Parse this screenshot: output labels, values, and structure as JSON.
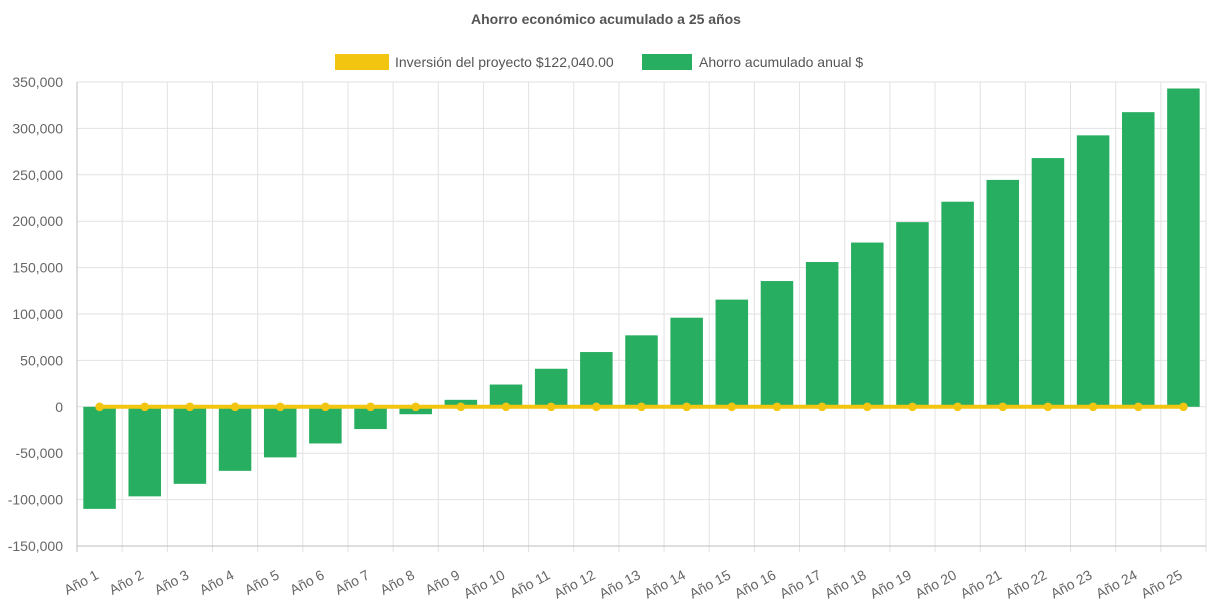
{
  "chart_data": {
    "type": "bar",
    "title": "Ahorro económico acumulado a 25 años",
    "xlabel": "",
    "ylabel": "",
    "ylim": [
      -150000,
      350000
    ],
    "yticks": [
      350000,
      300000,
      250000,
      200000,
      150000,
      100000,
      50000,
      0,
      -50000,
      -100000,
      -150000
    ],
    "ytick_labels": [
      "350,000",
      "300,000",
      "250,000",
      "200,000",
      "150,000",
      "100,000",
      "50,000",
      "0",
      "-50,000",
      "-100,000",
      "-150,000"
    ],
    "grid": true,
    "legend_position": "top",
    "categories": [
      "Año 1",
      "Año 2",
      "Año 3",
      "Año 4",
      "Año 5",
      "Año 6",
      "Año 7",
      "Año 8",
      "Año 9",
      "Año 10",
      "Año 11",
      "Año 12",
      "Año 13",
      "Año 14",
      "Año 15",
      "Año 16",
      "Año 17",
      "Año 18",
      "Año 19",
      "Año 20",
      "Año 21",
      "Año 22",
      "Año 23",
      "Año 24",
      "Año 25"
    ],
    "series": [
      {
        "name": "Inversión del proyecto $122,040.00",
        "type": "line",
        "color": "#f2c511",
        "values": [
          0,
          0,
          0,
          0,
          0,
          0,
          0,
          0,
          0,
          0,
          0,
          0,
          0,
          0,
          0,
          0,
          0,
          0,
          0,
          0,
          0,
          0,
          0,
          0,
          0
        ]
      },
      {
        "name": "Ahorro acumulado anual $",
        "type": "bar",
        "color": "#27ae60",
        "values": [
          -110000,
          -96500,
          -83000,
          -69000,
          -54500,
          -39500,
          -24000,
          -8000,
          7500,
          24000,
          41000,
          59000,
          77000,
          96000,
          115500,
          135500,
          156000,
          177000,
          199000,
          221000,
          244500,
          268000,
          292500,
          317500,
          343000
        ]
      }
    ]
  }
}
